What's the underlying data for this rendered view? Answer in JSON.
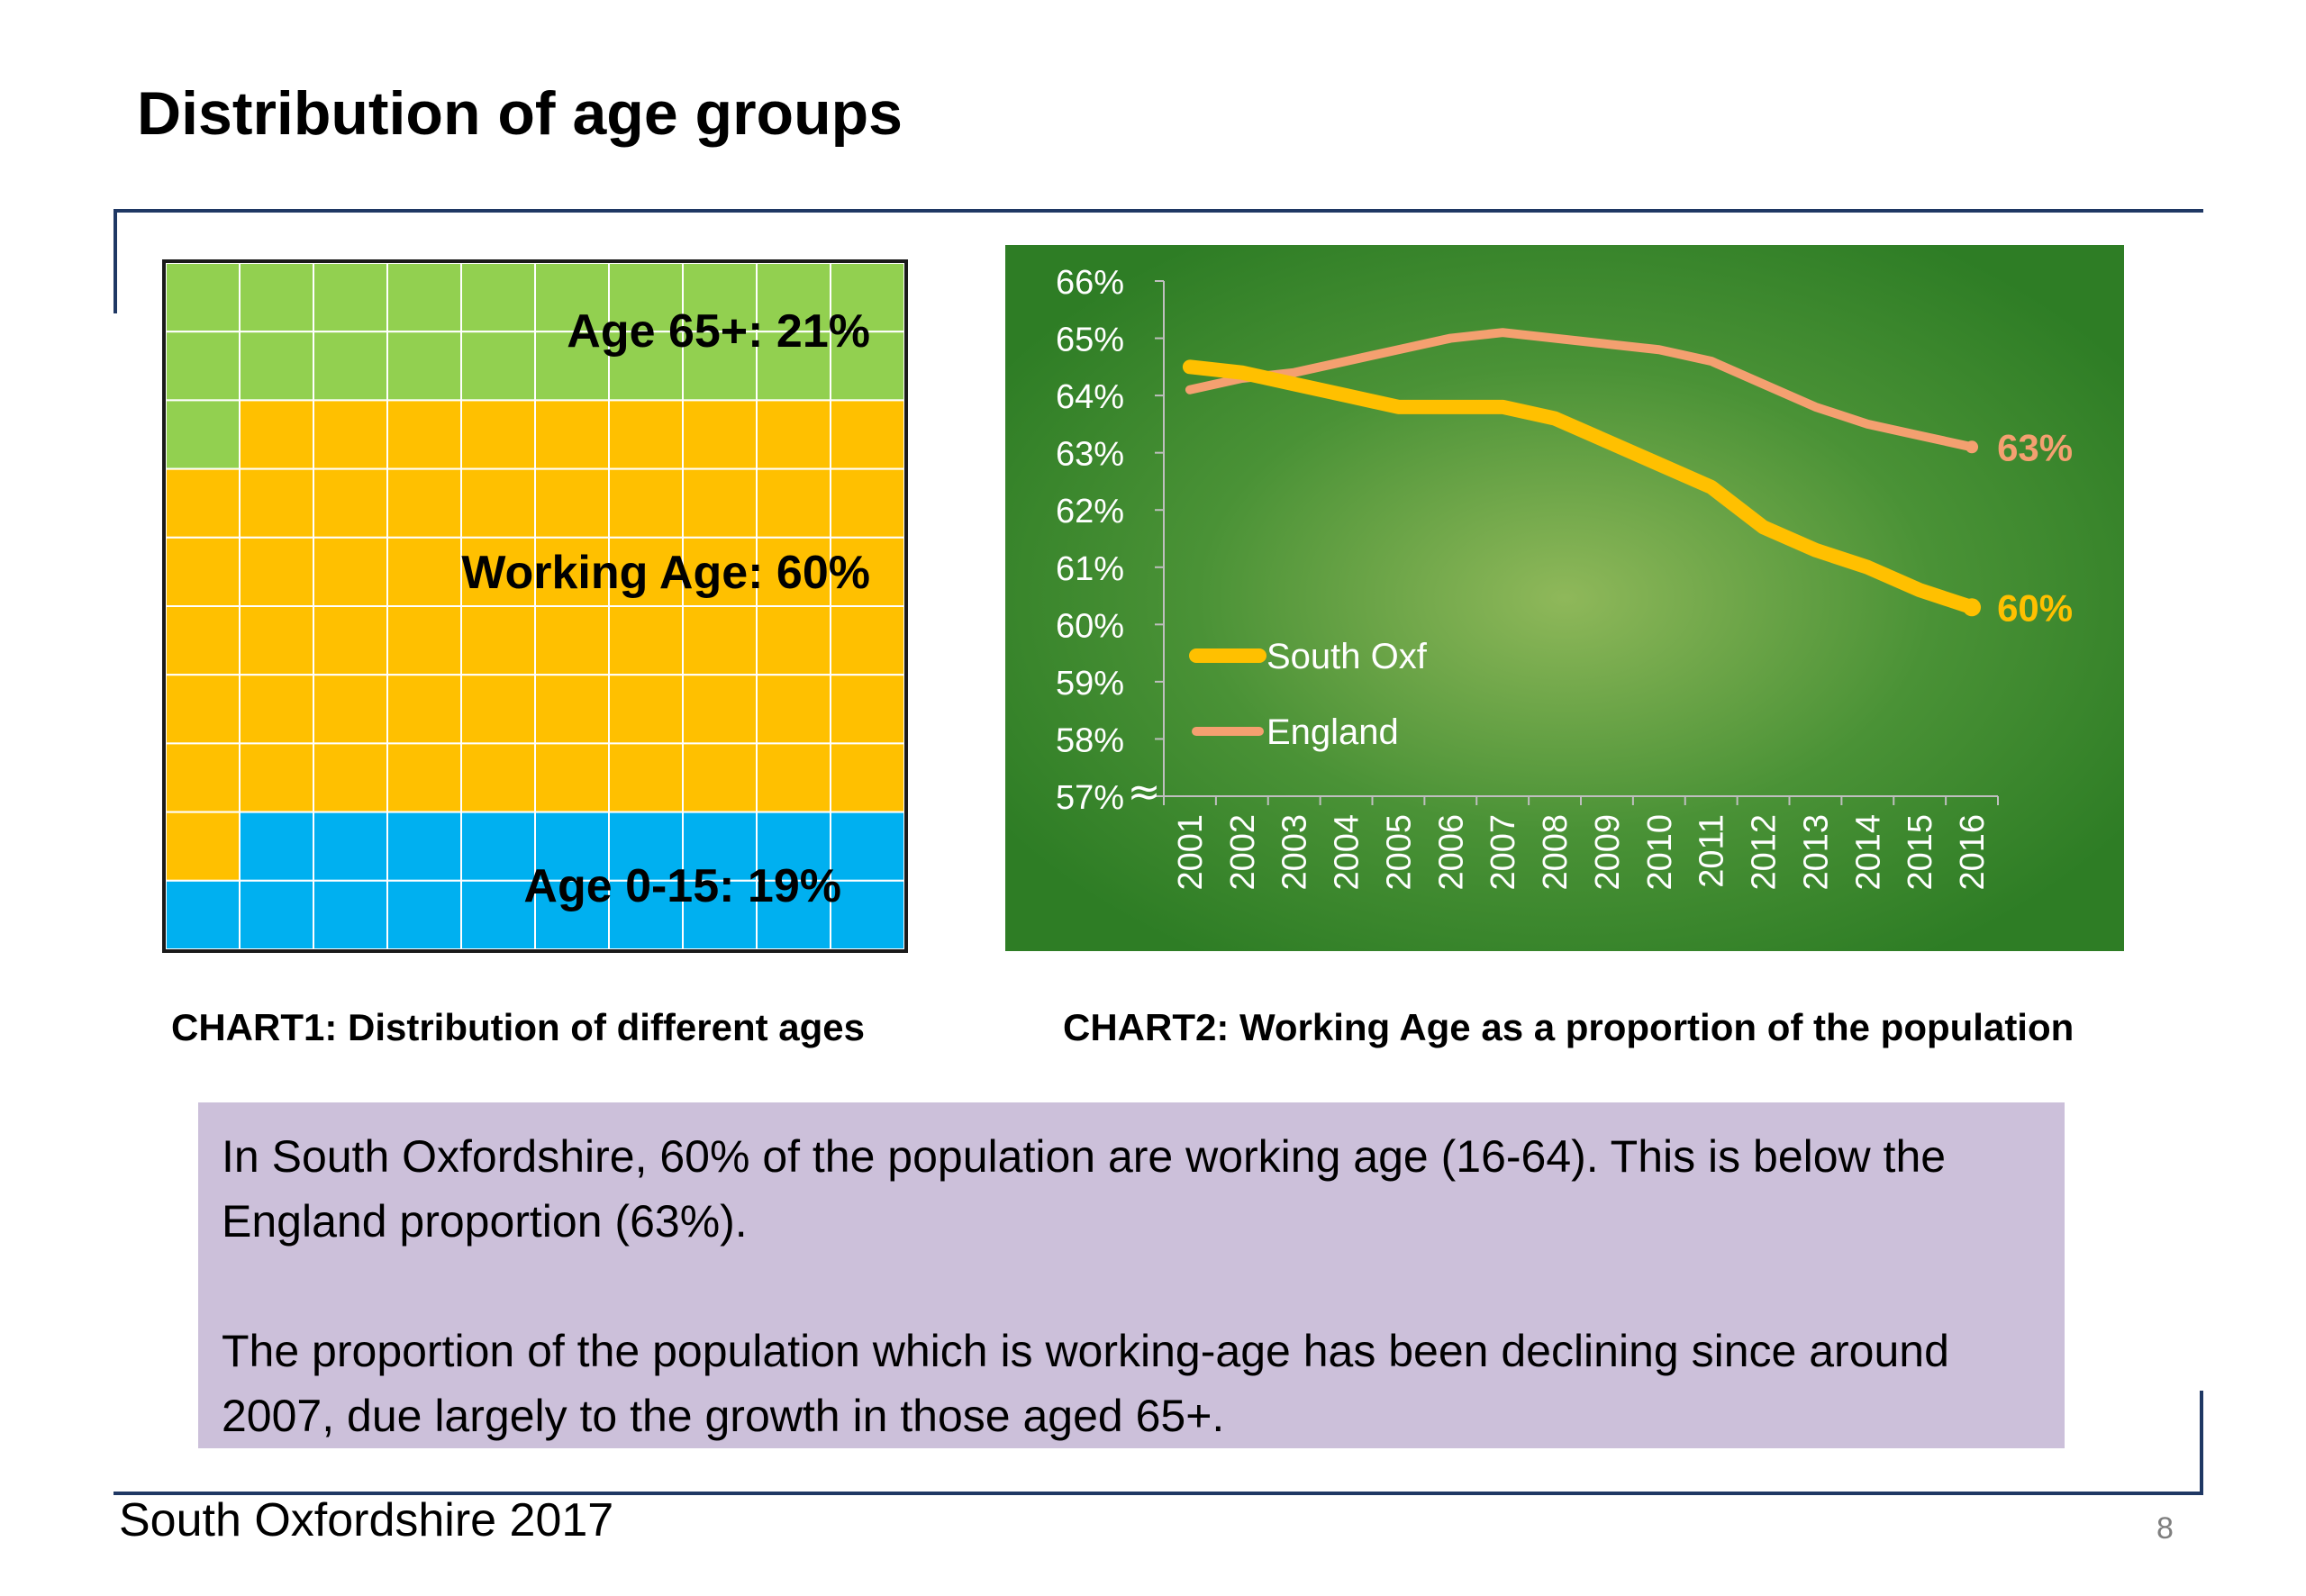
{
  "slide": {
    "title": "Distribution of age groups",
    "footer": "South Oxfordshire  2017",
    "page_number": "8"
  },
  "captions": {
    "chart1": "CHART1: Distribution of different ages",
    "chart2": "CHART2: Working Age as a proportion of the population"
  },
  "textbox": {
    "para1": "In South Oxfordshire, 60% of the population are working age (16-64).  This is below the England proportion (63%).",
    "para2": "The proportion of the population which is working-age has been declining since around 2007, due largely to the growth in those aged 65+."
  },
  "chart_data": [
    {
      "type": "waffle",
      "grid": [
        10,
        10
      ],
      "segments": [
        {
          "label": "Age 65+: 21%",
          "value": 21,
          "color": "#92d050"
        },
        {
          "label": "Working Age: 60%",
          "value": 60,
          "color": "#ffc000"
        },
        {
          "label": "Age 0-15: 19%",
          "value": 19,
          "color": "#00b0f0"
        }
      ]
    },
    {
      "type": "line",
      "x": [
        "2001",
        "2002",
        "2003",
        "2004",
        "2005",
        "2006",
        "2007",
        "2008",
        "2009",
        "2010",
        "2011",
        "2012",
        "2013",
        "2014",
        "2015",
        "2016"
      ],
      "ylim": [
        57,
        66
      ],
      "yticks": [
        "57%",
        "58%",
        "59%",
        "60%",
        "61%",
        "62%",
        "63%",
        "64%",
        "65%",
        "66%"
      ],
      "axis_break_symbol": "≈",
      "background": "#2e7d25",
      "legend_position": "left-middle",
      "series": [
        {
          "name": "South Oxf",
          "color": "#ffc000",
          "values": [
            64.5,
            64.4,
            64.2,
            64.0,
            63.8,
            63.8,
            63.8,
            63.6,
            63.2,
            62.8,
            62.4,
            61.7,
            61.3,
            61.0,
            60.6,
            60.3
          ],
          "end_label": "60%"
        },
        {
          "name": "England",
          "color": "#f4a070",
          "values": [
            64.1,
            64.3,
            64.4,
            64.6,
            64.8,
            65.0,
            65.1,
            65.0,
            64.9,
            64.8,
            64.6,
            64.2,
            63.8,
            63.5,
            63.3,
            63.1
          ],
          "end_label": "63%"
        }
      ]
    }
  ]
}
